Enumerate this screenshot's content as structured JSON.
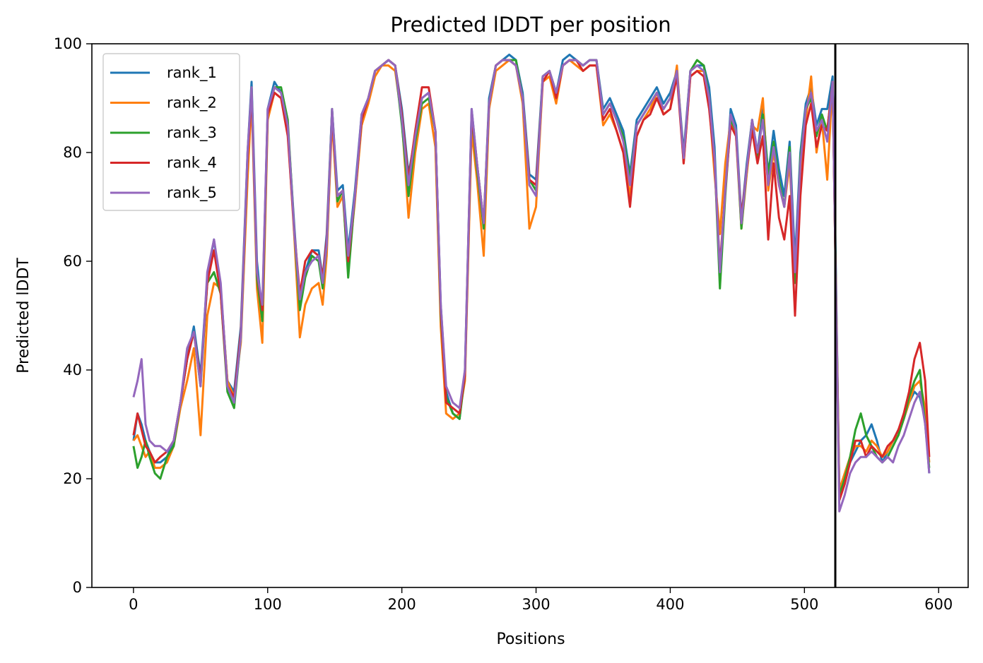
{
  "chart_data": {
    "type": "line",
    "title": "Predicted lDDT per position",
    "xlabel": "Positions",
    "ylabel": "Predicted lDDT",
    "xlim": [
      -31,
      622
    ],
    "ylim": [
      0,
      100
    ],
    "xticks": [
      0,
      100,
      200,
      300,
      400,
      500,
      600
    ],
    "yticks": [
      0,
      20,
      40,
      60,
      80,
      100
    ],
    "vline_x": 523,
    "legend_position": "upper-left",
    "grid": false,
    "x": [
      0,
      3,
      6,
      9,
      12,
      16,
      20,
      25,
      30,
      35,
      40,
      45,
      50,
      55,
      60,
      65,
      70,
      75,
      80,
      85,
      88,
      92,
      96,
      100,
      105,
      110,
      115,
      120,
      124,
      128,
      133,
      138,
      141,
      144,
      148,
      152,
      156,
      160,
      165,
      170,
      175,
      180,
      185,
      190,
      195,
      200,
      205,
      210,
      215,
      220,
      225,
      229,
      233,
      238,
      243,
      247,
      252,
      256,
      261,
      265,
      270,
      275,
      280,
      285,
      290,
      295,
      300,
      305,
      310,
      315,
      320,
      325,
      330,
      335,
      340,
      345,
      350,
      355,
      360,
      365,
      370,
      375,
      380,
      385,
      390,
      395,
      400,
      405,
      410,
      415,
      420,
      425,
      429,
      433,
      437,
      441,
      445,
      449,
      453,
      457,
      461,
      465,
      469,
      473,
      477,
      481,
      485,
      489,
      493,
      497,
      501,
      505,
      509,
      513,
      517,
      521,
      523,
      526,
      530,
      534,
      538,
      542,
      546,
      550,
      554,
      558,
      562,
      566,
      570,
      574,
      578,
      582,
      586,
      590,
      593
    ],
    "series": [
      {
        "name": "rank_1",
        "color": "#1f77b4",
        "values": [
          27,
          32,
          30,
          27,
          25,
          23,
          23,
          24,
          27,
          34,
          42,
          48,
          39,
          57,
          64,
          55,
          38,
          36,
          48,
          80,
          93,
          60,
          50,
          88,
          93,
          91,
          85,
          66,
          52,
          58,
          62,
          62,
          57,
          65,
          88,
          73,
          74,
          62,
          73,
          87,
          90,
          95,
          96,
          97,
          96,
          88,
          76,
          83,
          90,
          91,
          84,
          52,
          36,
          32,
          31,
          40,
          88,
          78,
          67,
          90,
          96,
          97,
          98,
          97,
          91,
          76,
          75,
          94,
          95,
          91,
          97,
          98,
          97,
          96,
          97,
          97,
          88,
          90,
          87,
          84,
          76,
          86,
          88,
          90,
          92,
          89,
          91,
          95,
          80,
          95,
          96,
          96,
          92,
          81,
          57,
          73,
          88,
          85,
          68,
          78,
          86,
          80,
          88,
          76,
          84,
          77,
          72,
          82,
          60,
          80,
          89,
          92,
          85,
          88,
          88,
          94,
          65,
          17,
          20,
          23,
          25,
          27,
          28,
          30,
          27,
          23,
          25,
          27,
          29,
          31,
          34,
          36,
          35,
          31,
          21
        ]
      },
      {
        "name": "rank_2",
        "color": "#ff7f0e",
        "values": [
          27,
          28,
          26,
          24,
          25,
          22,
          22,
          23,
          26,
          33,
          38,
          44,
          28,
          50,
          56,
          55,
          38,
          35,
          45,
          75,
          90,
          55,
          45,
          86,
          91,
          90,
          84,
          64,
          46,
          52,
          55,
          56,
          52,
          61,
          86,
          70,
          72,
          59,
          71,
          85,
          89,
          94,
          96,
          96,
          95,
          86,
          68,
          80,
          88,
          89,
          81,
          48,
          32,
          31,
          32,
          38,
          84,
          75,
          61,
          88,
          95,
          96,
          97,
          96,
          89,
          66,
          70,
          93,
          94,
          89,
          96,
          97,
          96,
          95,
          96,
          96,
          85,
          87,
          84,
          80,
          72,
          83,
          86,
          88,
          91,
          87,
          88,
          96,
          78,
          94,
          95,
          95,
          89,
          76,
          65,
          78,
          86,
          83,
          66,
          76,
          85,
          84,
          90,
          73,
          80,
          74,
          70,
          78,
          58,
          77,
          86,
          94,
          80,
          86,
          75,
          93,
          62,
          18,
          21,
          24,
          26,
          26,
          25,
          27,
          26,
          24,
          25,
          27,
          28,
          31,
          34,
          37,
          38,
          33,
          23
        ]
      },
      {
        "name": "rank_3",
        "color": "#2ca02c",
        "values": [
          26,
          22,
          24,
          27,
          24,
          21,
          20,
          24,
          26,
          34,
          42,
          47,
          37,
          56,
          58,
          54,
          36,
          33,
          46,
          79,
          92,
          57,
          49,
          87,
          92,
          92,
          86,
          65,
          51,
          57,
          61,
          60,
          55,
          63,
          88,
          71,
          73,
          57,
          72,
          86,
          90,
          95,
          96,
          97,
          96,
          85,
          72,
          82,
          89,
          90,
          84,
          50,
          35,
          32,
          31,
          39,
          87,
          77,
          66,
          89,
          96,
          97,
          97,
          97,
          90,
          75,
          73,
          94,
          95,
          91,
          96,
          97,
          97,
          96,
          97,
          97,
          87,
          89,
          86,
          83,
          75,
          85,
          87,
          89,
          91,
          88,
          90,
          95,
          79,
          95,
          97,
          96,
          90,
          79,
          55,
          72,
          86,
          84,
          66,
          77,
          86,
          79,
          87,
          76,
          82,
          75,
          70,
          81,
          56,
          79,
          88,
          90,
          83,
          87,
          84,
          93,
          63,
          17,
          20,
          24,
          29,
          32,
          28,
          26,
          24,
          23,
          24,
          26,
          28,
          31,
          35,
          38,
          40,
          30,
          22
        ]
      },
      {
        "name": "rank_4",
        "color": "#d62728",
        "values": [
          28,
          32,
          29,
          26,
          25,
          23,
          24,
          25,
          27,
          34,
          42,
          47,
          38,
          56,
          62,
          54,
          37,
          35,
          47,
          79,
          91,
          58,
          51,
          87,
          91,
          90,
          83,
          65,
          54,
          60,
          62,
          61,
          57,
          64,
          87,
          72,
          73,
          60,
          72,
          86,
          90,
          95,
          96,
          97,
          96,
          87,
          75,
          84,
          92,
          92,
          84,
          51,
          34,
          33,
          32,
          39,
          87,
          78,
          67,
          89,
          96,
          97,
          97,
          96,
          90,
          75,
          74,
          93,
          95,
          90,
          96,
          97,
          97,
          95,
          96,
          96,
          86,
          88,
          84,
          80,
          70,
          83,
          86,
          87,
          90,
          87,
          88,
          94,
          78,
          94,
          95,
          94,
          88,
          78,
          59,
          73,
          85,
          83,
          68,
          77,
          84,
          78,
          83,
          64,
          78,
          68,
          64,
          72,
          50,
          72,
          85,
          89,
          81,
          85,
          84,
          93,
          62,
          16,
          19,
          23,
          27,
          27,
          24,
          26,
          25,
          24,
          26,
          27,
          29,
          32,
          36,
          42,
          45,
          38,
          24
        ]
      },
      {
        "name": "rank_5",
        "color": "#9467bd",
        "values": [
          35,
          38,
          42,
          30,
          27,
          26,
          26,
          25,
          27,
          34,
          44,
          47,
          37,
          58,
          64,
          56,
          37,
          34,
          46,
          80,
          92,
          58,
          52,
          88,
          92,
          91,
          85,
          65,
          53,
          58,
          60,
          61,
          56,
          63,
          88,
          72,
          73,
          61,
          72,
          87,
          90,
          95,
          96,
          97,
          96,
          86,
          74,
          83,
          90,
          91,
          84,
          52,
          37,
          34,
          33,
          40,
          88,
          78,
          67,
          89,
          96,
          97,
          97,
          96,
          90,
          74,
          72,
          94,
          95,
          91,
          96,
          97,
          97,
          96,
          97,
          97,
          87,
          89,
          86,
          82,
          74,
          85,
          87,
          89,
          91,
          88,
          90,
          95,
          79,
          95,
          96,
          95,
          90,
          79,
          58,
          73,
          87,
          84,
          67,
          77,
          86,
          80,
          86,
          74,
          81,
          74,
          70,
          80,
          58,
          78,
          88,
          91,
          84,
          86,
          82,
          93,
          62,
          14,
          17,
          21,
          23,
          24,
          24,
          25,
          24,
          23,
          24,
          23,
          26,
          28,
          31,
          34,
          36,
          30,
          21
        ]
      }
    ]
  }
}
